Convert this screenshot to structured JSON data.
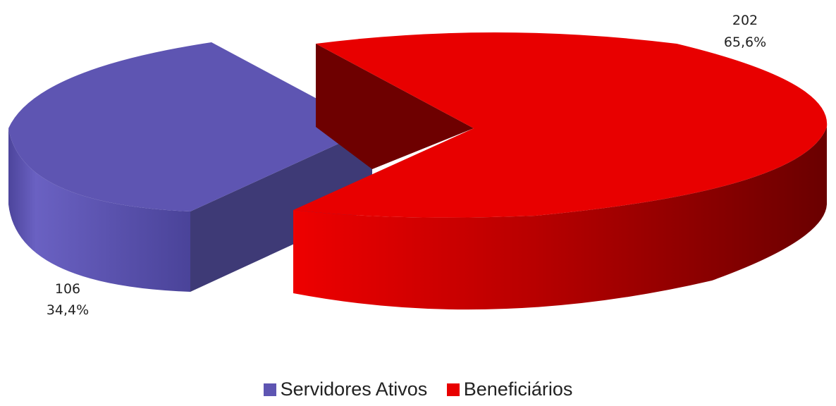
{
  "chart_data": {
    "type": "pie",
    "categories": [
      "Servidores Ativos",
      "Beneficiários"
    ],
    "values": [
      106,
      202
    ],
    "percent_labels": [
      "34,4%",
      "65,6%"
    ],
    "colors": [
      "#5E55B2",
      "#E80000"
    ],
    "legend_position": "bottom",
    "style": "3d-exploded"
  }
}
